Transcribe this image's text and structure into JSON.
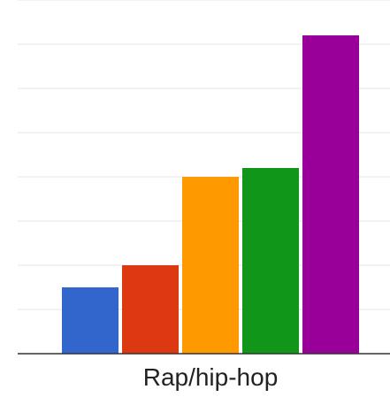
{
  "chart_data": {
    "type": "bar",
    "categories": [
      "Rap/hip-hop"
    ],
    "series": [
      {
        "color": "#3366cc",
        "values": [
          7.5
        ]
      },
      {
        "color": "#dc3912",
        "values": [
          10
        ]
      },
      {
        "color": "#ff9900",
        "values": [
          20
        ]
      },
      {
        "color": "#109618",
        "values": [
          21
        ]
      },
      {
        "color": "#990099",
        "values": [
          36
        ]
      }
    ],
    "ylim": [
      0,
      40
    ],
    "y_gridline_step": 5,
    "grid": true,
    "title": "",
    "xlabel": "",
    "ylabel": ""
  },
  "style": {
    "gridline_color": "#e6e6e6",
    "baseline_color": "#333333",
    "label_color": "#222222"
  }
}
